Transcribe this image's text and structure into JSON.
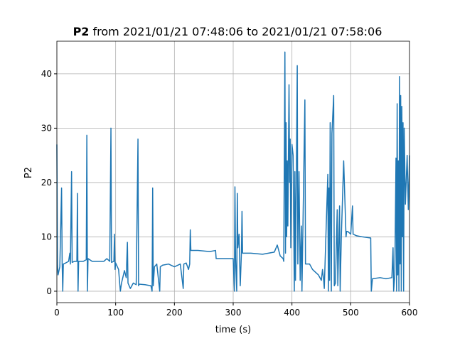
{
  "chart_data": {
    "type": "line",
    "title_prefix": "P2",
    "title": "from 2021/01/21 07:48:06 to 2021/01/21 07:58:06",
    "x_label": "time (s)",
    "y_label": "P2",
    "xlim": [
      0,
      600
    ],
    "ylim": [
      -2.1,
      46
    ],
    "xticks": [
      0,
      100,
      200,
      300,
      400,
      500,
      600
    ],
    "yticks": [
      0,
      10,
      20,
      30,
      40
    ],
    "grid": true,
    "series": [
      {
        "color": "#1f77b4",
        "x": [
          0,
          1,
          2,
          5,
          8,
          9,
          10,
          11,
          15,
          20,
          22,
          23,
          25,
          26,
          30,
          34,
          35,
          36,
          37,
          45,
          50,
          51,
          52,
          53,
          60,
          70,
          80,
          85,
          90,
          92,
          93,
          97,
          98,
          99,
          100,
          105,
          108,
          110,
          115,
          118,
          120,
          121,
          125,
          130,
          135,
          138,
          139,
          140,
          150,
          160,
          162,
          163,
          164,
          166,
          170,
          175,
          176,
          180,
          190,
          200,
          210,
          215,
          216,
          220,
          224,
          226,
          227,
          228,
          240,
          260,
          270,
          271,
          280,
          290,
          300,
          302,
          303,
          304,
          306,
          307,
          308,
          310,
          312,
          314,
          315,
          316,
          330,
          350,
          360,
          370,
          375,
          380,
          385,
          386,
          388,
          389,
          390,
          391,
          392,
          393,
          395,
          396,
          397,
          398,
          400,
          402,
          404,
          405,
          406,
          409,
          410,
          412,
          414,
          416,
          417,
          422,
          423,
          425,
          430,
          435,
          440,
          445,
          450,
          452,
          454,
          455,
          461,
          462,
          463,
          464,
          465,
          467,
          468,
          471,
          472,
          474,
          477,
          478,
          481,
          482,
          484,
          488,
          492,
          493,
          495,
          500,
          503,
          504,
          510,
          520,
          534,
          535,
          537,
          550,
          560,
          570,
          572,
          573,
          575,
          577,
          578,
          579,
          580,
          581,
          582,
          583,
          584,
          585,
          586,
          587,
          588,
          589,
          590,
          591,
          593,
          596,
          598,
          600
        ],
        "values": [
          27,
          5,
          3,
          4.5,
          19,
          5,
          0,
          5,
          5.2,
          5.5,
          7,
          5,
          22,
          5.3,
          5.5,
          5.5,
          18,
          0,
          5.5,
          5.5,
          5.8,
          28.7,
          0,
          6,
          5.5,
          5.5,
          5.5,
          6,
          5.5,
          30,
          5.3,
          5.5,
          10.5,
          4,
          5.2,
          4,
          0,
          1.5,
          3.8,
          2.5,
          9,
          1.5,
          0.5,
          1.5,
          1.2,
          28,
          1,
          1.3,
          1.2,
          1,
          0,
          19,
          1,
          4.5,
          5,
          0,
          4.5,
          4.8,
          5,
          4.5,
          5,
          0.5,
          5,
          5.2,
          4,
          5,
          11.3,
          7.5,
          7.5,
          7.3,
          7.5,
          6,
          6,
          6,
          6,
          0,
          19.2,
          6,
          0,
          18,
          8,
          10.5,
          1,
          7,
          14.7,
          7,
          7,
          6.8,
          7,
          7.2,
          8.5,
          6.5,
          6,
          5.5,
          44,
          7,
          31,
          10,
          24,
          12,
          38,
          20,
          28,
          8,
          27,
          25,
          0,
          22,
          2,
          41.5,
          5,
          22,
          2,
          12,
          0,
          35.2,
          5,
          5,
          5,
          4,
          3.5,
          3,
          2,
          4,
          2,
          0.5,
          21.5,
          0,
          19,
          2,
          31,
          0,
          29,
          36,
          1,
          1.5,
          15,
          1,
          15.7,
          0,
          10,
          24,
          10,
          11,
          11,
          10.5,
          15.7,
          10.5,
          10.2,
          10,
          9.8,
          0,
          2.3,
          2.5,
          2.3,
          2.5,
          8,
          0,
          3,
          24.5,
          0,
          34.5,
          3,
          24,
          0,
          39.5,
          5,
          36,
          0,
          34,
          10,
          31,
          0,
          30,
          16,
          25,
          15,
          25
        ]
      }
    ]
  }
}
